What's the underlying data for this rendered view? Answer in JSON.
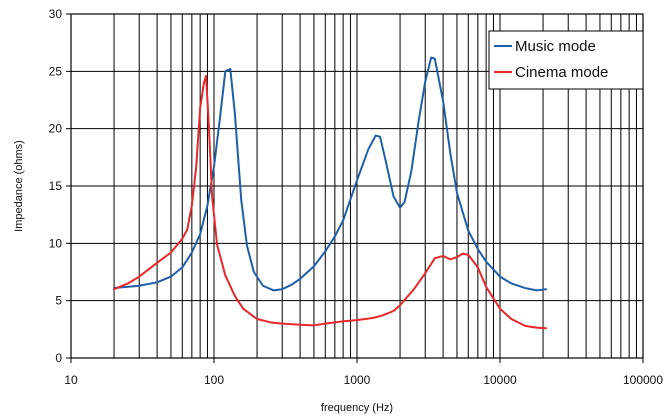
{
  "chart_data": {
    "type": "line",
    "title": "",
    "xlabel": "frequency (Hz)",
    "ylabel": "Impedance (ohms)",
    "xscale": "log",
    "xlim": [
      10,
      100000
    ],
    "ylim": [
      0,
      30
    ],
    "x_ticks": [
      10,
      100,
      1000,
      10000,
      100000
    ],
    "x_tick_labels": [
      "10",
      "100",
      "1000",
      "10000",
      "100000"
    ],
    "y_ticks": [
      0,
      5,
      10,
      15,
      20,
      25,
      30
    ],
    "y_tick_labels": [
      "0",
      "5",
      "10",
      "15",
      "20",
      "25",
      "30"
    ],
    "grid": true,
    "legend_position": "top-right",
    "series": [
      {
        "name": "Music mode",
        "color": "#1f5fa8",
        "points": [
          [
            20,
            6.1
          ],
          [
            30,
            6.3
          ],
          [
            40,
            6.6
          ],
          [
            50,
            7.1
          ],
          [
            60,
            7.9
          ],
          [
            70,
            9.2
          ],
          [
            80,
            10.8
          ],
          [
            90,
            13.3
          ],
          [
            100,
            16.7
          ],
          [
            110,
            20.9
          ],
          [
            120,
            25.0
          ],
          [
            130,
            25.2
          ],
          [
            140,
            21.3
          ],
          [
            155,
            13.8
          ],
          [
            170,
            9.8
          ],
          [
            190,
            7.5
          ],
          [
            220,
            6.3
          ],
          [
            260,
            5.9
          ],
          [
            300,
            6.0
          ],
          [
            350,
            6.4
          ],
          [
            400,
            6.9
          ],
          [
            500,
            8.0
          ],
          [
            600,
            9.3
          ],
          [
            700,
            10.6
          ],
          [
            800,
            12.0
          ],
          [
            1000,
            15.5
          ],
          [
            1200,
            18.2
          ],
          [
            1350,
            19.4
          ],
          [
            1450,
            19.3
          ],
          [
            1600,
            17.0
          ],
          [
            1800,
            14.1
          ],
          [
            2000,
            13.1
          ],
          [
            2150,
            13.6
          ],
          [
            2400,
            16.3
          ],
          [
            2700,
            20.7
          ],
          [
            3000,
            24.1
          ],
          [
            3300,
            26.2
          ],
          [
            3500,
            26.1
          ],
          [
            4000,
            22.4
          ],
          [
            4500,
            17.8
          ],
          [
            5000,
            14.4
          ],
          [
            6000,
            11.1
          ],
          [
            7000,
            9.5
          ],
          [
            8000,
            8.4
          ],
          [
            10000,
            7.1
          ],
          [
            12000,
            6.5
          ],
          [
            15000,
            6.1
          ],
          [
            18000,
            5.9
          ],
          [
            21000,
            6.0
          ]
        ]
      },
      {
        "name": "Cinema mode",
        "color": "#e8282b",
        "points": [
          [
            20,
            6.0
          ],
          [
            25,
            6.5
          ],
          [
            30,
            7.1
          ],
          [
            40,
            8.3
          ],
          [
            50,
            9.2
          ],
          [
            60,
            10.4
          ],
          [
            65,
            11.2
          ],
          [
            70,
            13.3
          ],
          [
            75,
            16.6
          ],
          [
            80,
            21.8
          ],
          [
            85,
            24.0
          ],
          [
            88,
            24.6
          ],
          [
            92,
            20.3
          ],
          [
            97,
            14.1
          ],
          [
            105,
            9.9
          ],
          [
            120,
            7.2
          ],
          [
            140,
            5.4
          ],
          [
            160,
            4.3
          ],
          [
            200,
            3.4
          ],
          [
            250,
            3.1
          ],
          [
            300,
            3.0
          ],
          [
            400,
            2.9
          ],
          [
            500,
            2.85
          ],
          [
            600,
            3.0
          ],
          [
            800,
            3.2
          ],
          [
            1000,
            3.3
          ],
          [
            1300,
            3.5
          ],
          [
            1500,
            3.7
          ],
          [
            1800,
            4.1
          ],
          [
            2000,
            4.6
          ],
          [
            2500,
            6.0
          ],
          [
            3000,
            7.4
          ],
          [
            3500,
            8.7
          ],
          [
            4000,
            8.9
          ],
          [
            4500,
            8.6
          ],
          [
            5000,
            8.8
          ],
          [
            5500,
            9.1
          ],
          [
            6000,
            9.0
          ],
          [
            7000,
            7.9
          ],
          [
            8000,
            6.2
          ],
          [
            10000,
            4.3
          ],
          [
            12000,
            3.4
          ],
          [
            15000,
            2.8
          ],
          [
            18000,
            2.65
          ],
          [
            21000,
            2.6
          ]
        ]
      }
    ]
  }
}
